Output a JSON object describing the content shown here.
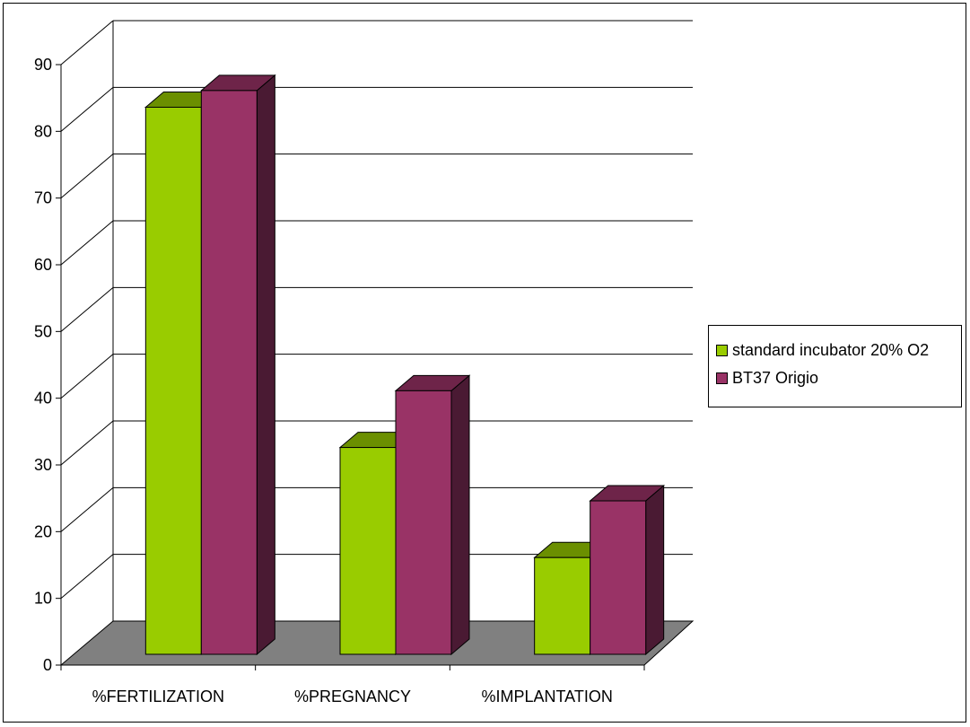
{
  "chart_data": {
    "type": "bar",
    "title": "",
    "xlabel": "",
    "ylabel": "",
    "categories": [
      "%FERTILIZATION",
      "%PREGNANCY",
      "%IMPLANTATION"
    ],
    "series": [
      {
        "name": "standard incubator 20% O2",
        "values": [
          82,
          31,
          14.5
        ],
        "color": "#99cc00",
        "top_color": "#6b8f00",
        "side_color": "#506b00"
      },
      {
        "name": "BT37 Origio",
        "values": [
          84.5,
          39.5,
          23
        ],
        "color": "#993366",
        "top_color": "#6e2449",
        "side_color": "#4a1a33"
      }
    ],
    "ylim": [
      0,
      90
    ],
    "yticks": [
      0,
      10,
      20,
      30,
      40,
      50,
      60,
      70,
      80,
      90
    ],
    "grid": true,
    "three_d": true,
    "floor_color": "#808080",
    "legend_position": "right"
  }
}
